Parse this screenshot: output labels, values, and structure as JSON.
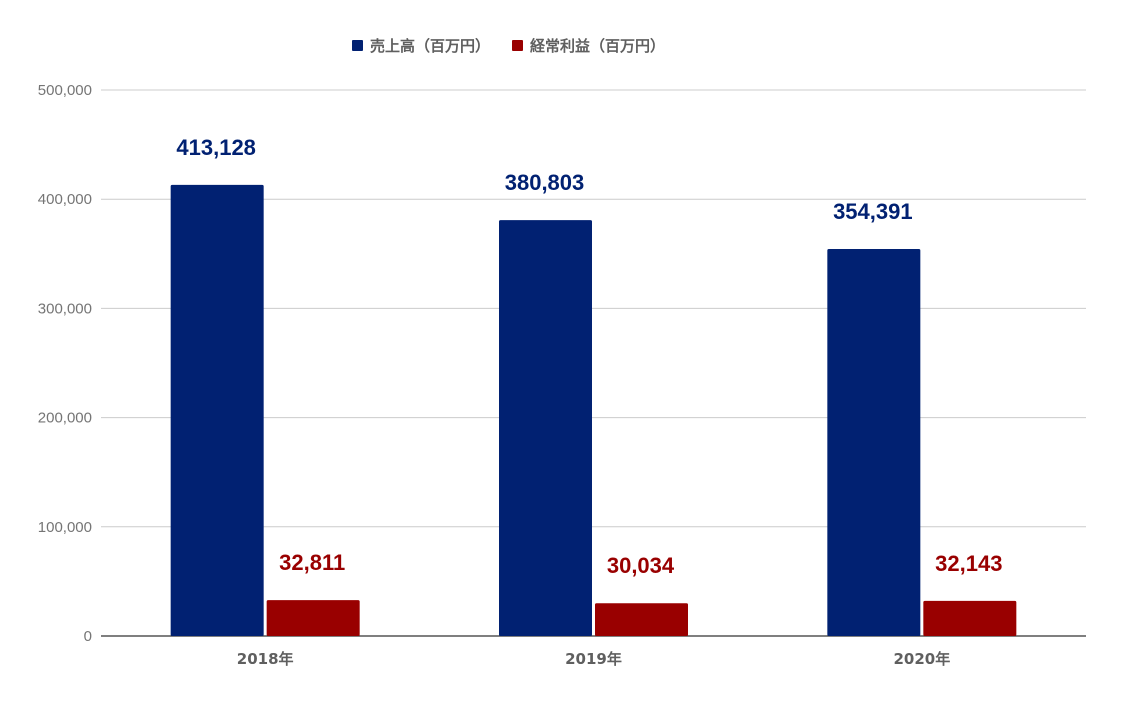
{
  "chart_data": {
    "type": "bar",
    "categories": [
      "2018年",
      "2019年",
      "2020年"
    ],
    "series": [
      {
        "name": "売上高（百万円）",
        "values": [
          413128,
          380803,
          354391
        ],
        "value_labels": [
          "413,128",
          "380,803",
          "354,391"
        ],
        "color": "#012172"
      },
      {
        "name": "経常利益（百万円）",
        "values": [
          32811,
          30034,
          32143
        ],
        "value_labels": [
          "32,811",
          "30,034",
          "32,143"
        ],
        "color": "#990000"
      }
    ],
    "ylim": [
      0,
      500000
    ],
    "yticks": [
      0,
      100000,
      200000,
      300000,
      400000,
      500000
    ],
    "ytick_labels": [
      "0",
      "100,000",
      "200,000",
      "300,000",
      "400,000",
      "500,000"
    ],
    "grid": true,
    "legend_position": "top"
  }
}
